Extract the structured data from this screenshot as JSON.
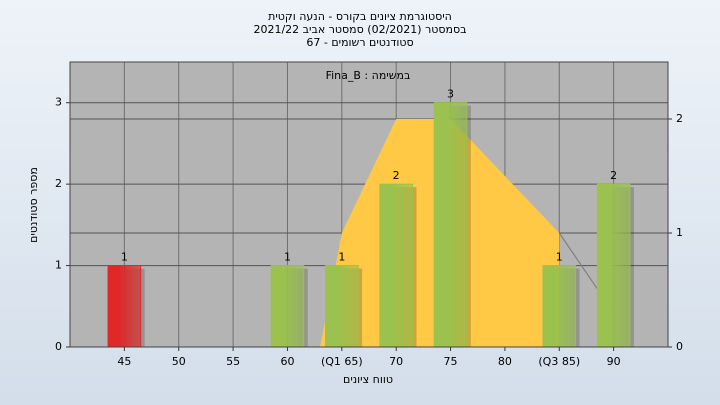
{
  "chart_data": {
    "type": "bar",
    "title": [
      "היסטוגרמת ציונים בקורס - הנעה וקטית",
      "בסמסטר  (02/2021)  סמסטר אביב 2021/22",
      "סטודנטים רשומים - 67"
    ],
    "subtitle": "במשימה : Fina_B",
    "xlabel": "טווח ציונים",
    "ylabel": "מספר סטודנטים",
    "xlim": [
      40,
      95
    ],
    "xticks": [
      45,
      50,
      55,
      60,
      {
        "value": 65,
        "label": "(Q1 65)"
      },
      70,
      75,
      80,
      {
        "value": 85,
        "label": "(Q3 85)"
      },
      90
    ],
    "ylim": [
      0,
      3.5
    ],
    "yticks": [
      0,
      1,
      2,
      3
    ],
    "y2lim": [
      0,
      2.5
    ],
    "y2ticks": [
      0,
      1,
      2
    ],
    "grid": true,
    "series": [
      {
        "type": "bar",
        "x": [
          45,
          60,
          65,
          70,
          75,
          85,
          90
        ],
        "values": [
          1,
          1,
          1,
          2,
          3,
          1,
          2
        ],
        "colors": [
          "#e02828",
          "#9bc24e",
          "#9bc24e",
          "#9bc24e",
          "#9bc24e",
          "#9bc24e",
          "#9bc24e"
        ]
      },
      {
        "type": "area",
        "axis": "y2",
        "color": "#ffc845",
        "x": [
          63,
          65,
          70,
          75,
          85
        ],
        "values": [
          0,
          1,
          2,
          2,
          1
        ]
      },
      {
        "type": "line",
        "axis": "y2",
        "color": "#808080",
        "x": [
          85,
          90
        ],
        "values": [
          1,
          0.3
        ]
      }
    ]
  }
}
